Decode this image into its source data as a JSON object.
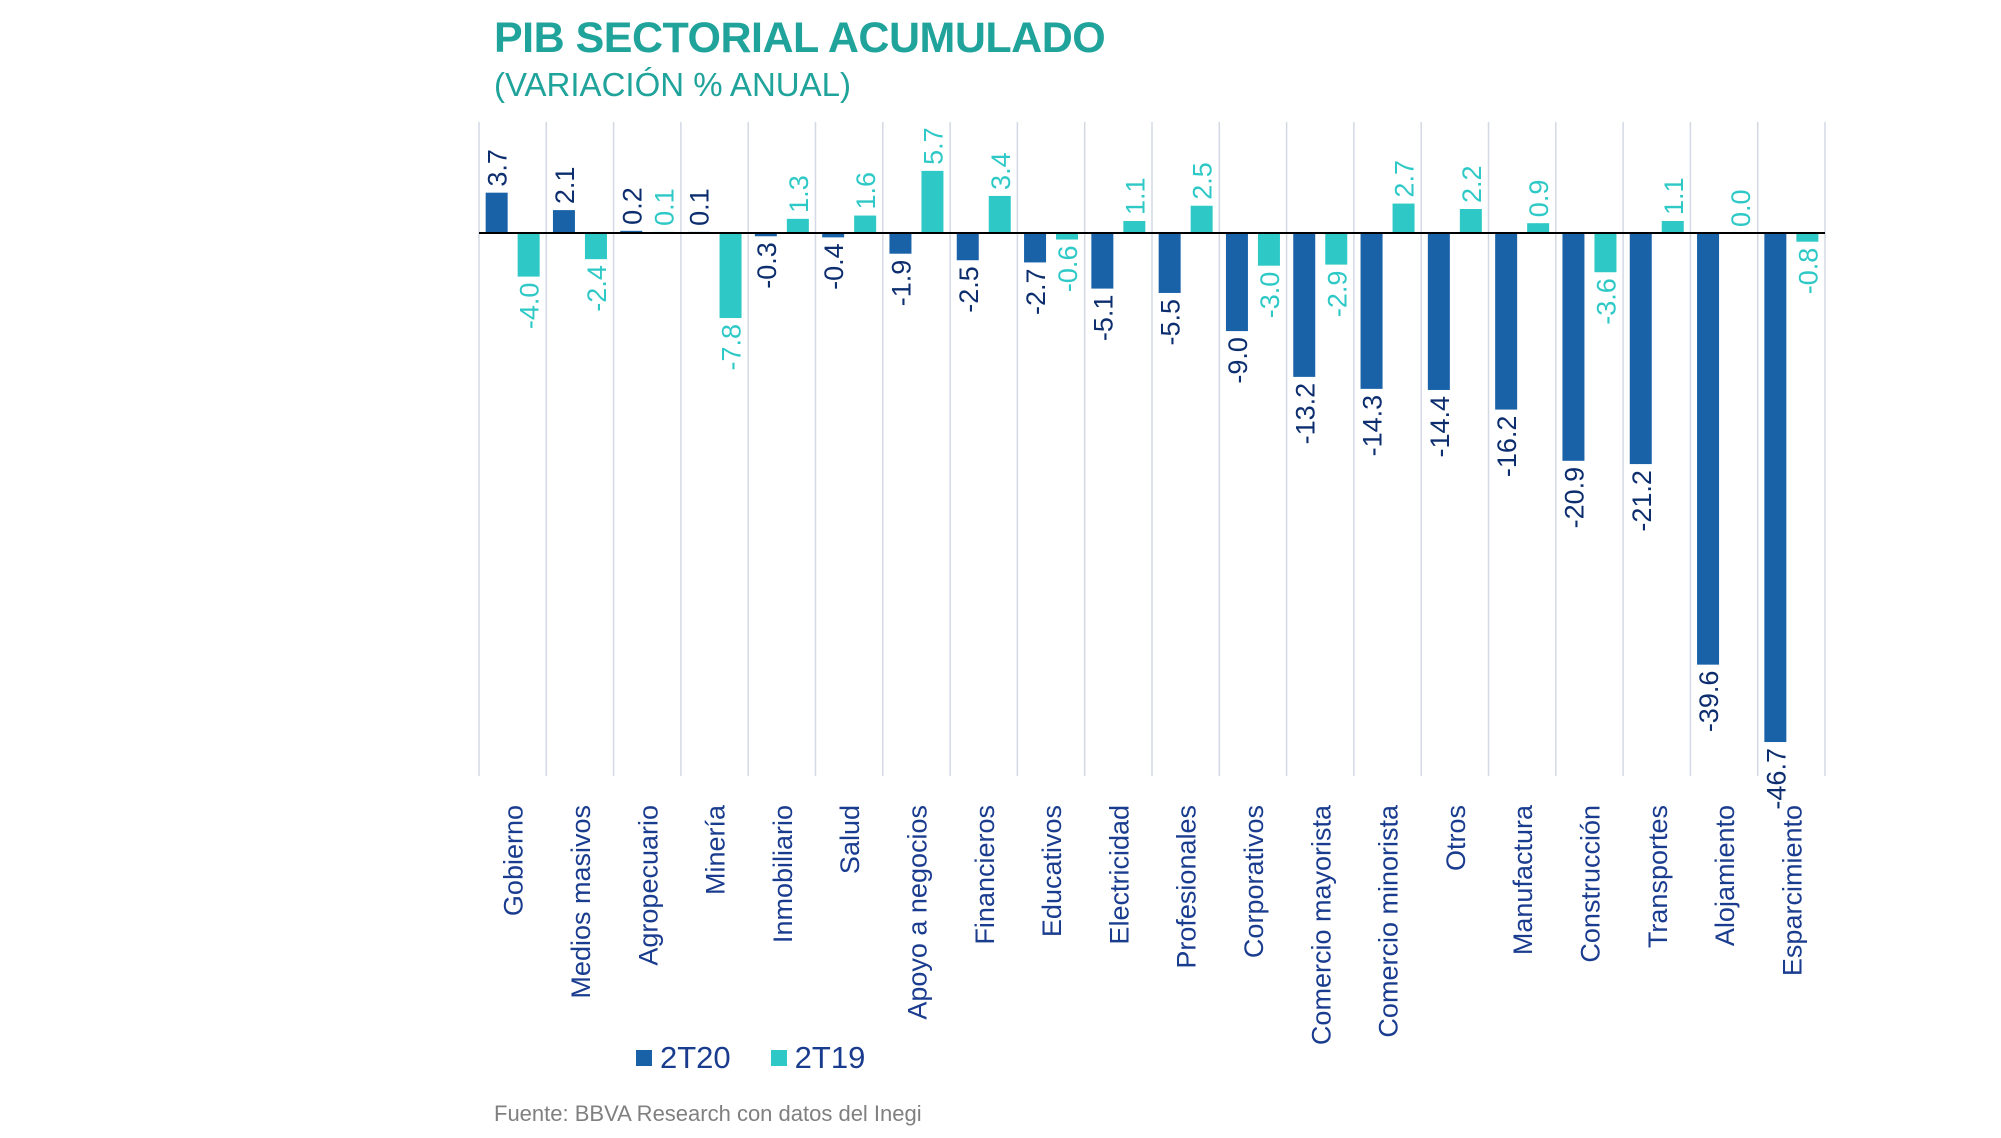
{
  "title": "PIB SECTORIAL ACUMULADO",
  "subtitle": "(VARIACIÓN % ANUAL)",
  "source": "Fuente: BBVA Research con datos del Inegi",
  "colors": {
    "series_2T20": "#1a62a8",
    "series_2T19": "#2ec9c6",
    "grid": "#d4d8e4",
    "axis": "#000000"
  },
  "chart_data": {
    "type": "bar",
    "categories": [
      "Gobierno",
      "Medios masivos",
      "Agropecuario",
      "Minería",
      "Inmobiliario",
      "Salud",
      "Apoyo a negocios",
      "Financieros",
      "Educativos",
      "Electricidad",
      "Profesionales",
      "Corporativos",
      "Comercio mayorista",
      "Comercio minorista",
      "Otros",
      "Manufactura",
      "Construcción",
      "Transportes",
      "Alojamiento",
      "Esparcimiento"
    ],
    "series": [
      {
        "name": "2T20",
        "values": [
          3.7,
          2.1,
          0.2,
          0.1,
          -0.3,
          -0.4,
          -1.9,
          -2.5,
          -2.7,
          -5.1,
          -5.5,
          -9.0,
          -13.2,
          -14.3,
          -14.4,
          -16.2,
          -20.9,
          -21.2,
          -39.6,
          -46.7
        ]
      },
      {
        "name": "2T19",
        "values": [
          -4.0,
          -2.4,
          0.1,
          -7.8,
          1.3,
          1.6,
          5.7,
          3.4,
          -0.6,
          1.1,
          2.5,
          -3.0,
          -2.9,
          2.7,
          2.2,
          0.9,
          -3.6,
          1.1,
          0.0,
          -0.8
        ]
      }
    ],
    "value_labels": {
      "2T20": [
        "3.7",
        "2.1",
        "0.2",
        "0.1",
        "-0.3",
        "-0.4",
        "-1.9",
        "-2.5",
        "-2.7",
        "-5.1",
        "-5.5",
        "-9.0",
        "-13.2",
        "-14.3",
        "-14.4",
        "-16.2",
        "-20.9",
        "-21.2",
        "-39.6",
        "-46.7"
      ],
      "2T19": [
        "-4.0",
        "-2.4",
        "0.1",
        "-7.8",
        "1.3",
        "1.6",
        "5.7",
        "3.4",
        "-0.6",
        "1.1",
        "2.5",
        "-3.0",
        "-2.9",
        "2.7",
        "2.2",
        "0.9",
        "-3.6",
        "1.1",
        "0.0",
        "-0.8"
      ]
    },
    "ylim": [
      -50,
      10
    ],
    "xlabel": "",
    "ylabel": "",
    "grid": "vertical",
    "legend_position": "bottom-left"
  },
  "legend": [
    {
      "label": "2T20",
      "color": "#1a62a8"
    },
    {
      "label": "2T19",
      "color": "#2ec9c6"
    }
  ]
}
